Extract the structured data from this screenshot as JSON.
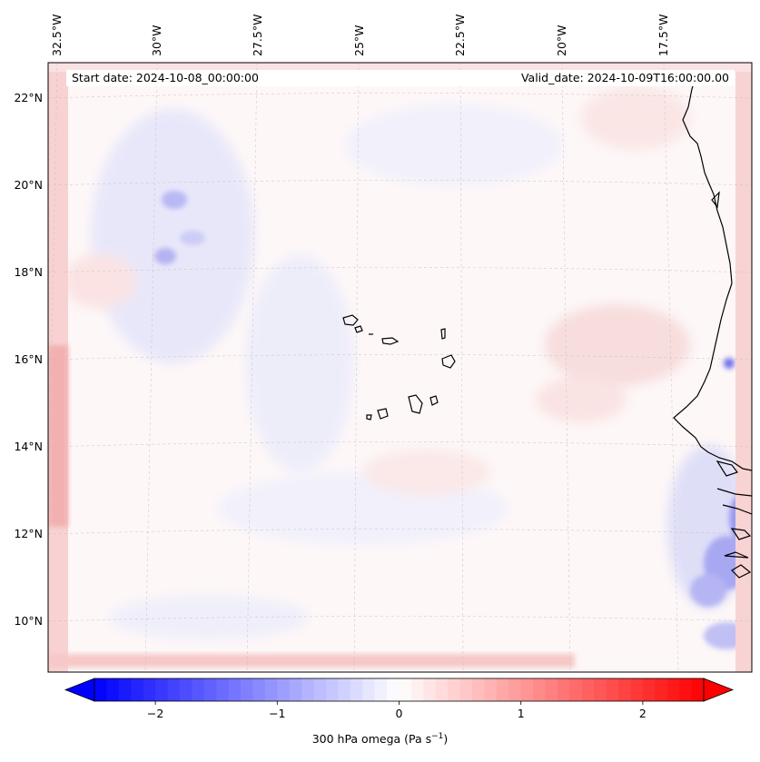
{
  "map": {
    "start_label": "Start date: 2024-10-08_00:00:00",
    "valid_label": "Valid_date: 2024-10-09T16:00:00.00",
    "lon_labels": [
      "32.5°W",
      "30°W",
      "27.5°W",
      "25°W",
      "22.5°W",
      "20°W",
      "17.5°W"
    ],
    "lat_labels": [
      "22°N",
      "20°N",
      "18°N",
      "16°N",
      "14°N",
      "12°N",
      "10°N"
    ],
    "variable": "300 hPa omega",
    "units": "Pa s",
    "units_exponent": "−1"
  },
  "colorbar": {
    "title_prefix": "300 hPa omega (Pa s",
    "title_suffix": ")",
    "ticks": [
      "−2",
      "−1",
      "0",
      "1",
      "2"
    ],
    "tick_values": [
      -2,
      -1,
      0,
      1,
      2
    ],
    "vmin": -2.5,
    "vmax": 2.5,
    "colormap": "bwr",
    "low_color": "#0000ff",
    "mid_color": "#ffffff",
    "high_color": "#ff0000"
  }
}
